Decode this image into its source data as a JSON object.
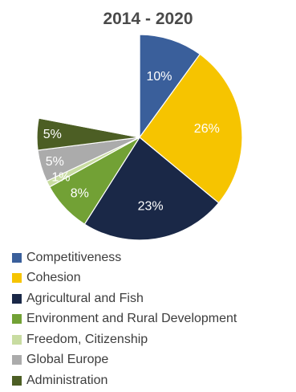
{
  "chart_data": {
    "type": "pie",
    "title": "2014 - 2020",
    "slices": [
      {
        "name": "Competitiveness",
        "value": 10,
        "label": "10%",
        "color": "#3a5f9b",
        "label_color": "#ffffff"
      },
      {
        "name": "Cohesion",
        "value": 26,
        "label": "26%",
        "color": "#f6c400",
        "label_color": "#ffffff"
      },
      {
        "name": "Agricultural and Fish",
        "value": 23,
        "label": "23%",
        "color": "#1a2847",
        "label_color": "#ffffff"
      },
      {
        "name": "Environment and Rural Development",
        "value": 8,
        "label": "8%",
        "color": "#72a135",
        "label_color": "#ffffff"
      },
      {
        "name": "Freedom, Citizenship",
        "value": 1,
        "label": "1%",
        "color": "#c8dca1",
        "label_color": "#ffffff"
      },
      {
        "name": "Global Europe",
        "value": 5,
        "label": "5%",
        "color": "#ababab",
        "label_color": "#ffffff"
      },
      {
        "name": "Administration",
        "value": 5,
        "label": "5%",
        "color": "#4c5e24",
        "label_color": "#ffffff"
      },
      {
        "name": "",
        "value": 22,
        "label": "",
        "color": "#ffffff",
        "label_color": "#ffffff"
      }
    ],
    "legend": "bottom-left"
  }
}
